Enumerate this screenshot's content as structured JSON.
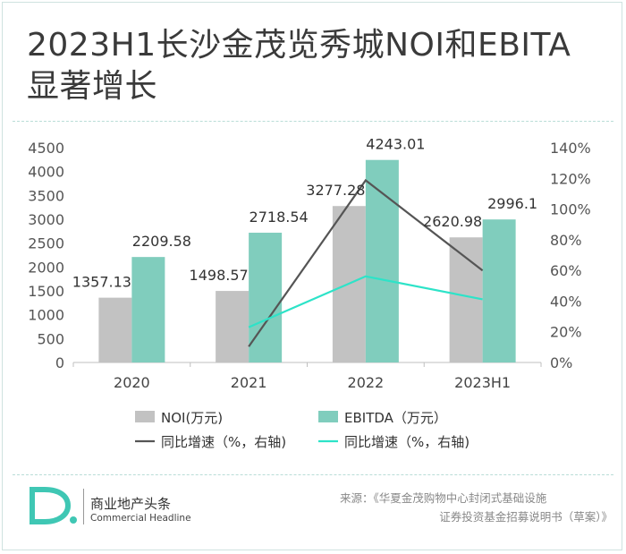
{
  "title": "2023H1长沙金茂览秀城NOI和EBITA显著增长",
  "brand": {
    "name": "商业地产头条",
    "sub": "Commercial Headline",
    "logo_text": "D."
  },
  "source": {
    "line1": "来源：《华夏金茂购物中心封闭式基础设施",
    "line2": "证券投资基金招募说明书（草案）》"
  },
  "colors": {
    "noi_bar": "#c2c2c2",
    "ebitda_bar": "#80cdbd",
    "noi_line": "#555555",
    "ebitda_line": "#2de3c8",
    "accent": "#3fc7b4"
  },
  "chart_data": {
    "type": "bar",
    "categories": [
      "2020",
      "2021",
      "2022",
      "2023H1"
    ],
    "series": [
      {
        "name": "NOI(万元)",
        "kind": "bar",
        "axis": "left",
        "values": [
          1357.13,
          1498.57,
          3277.28,
          2620.98
        ],
        "labels": [
          "1357.13",
          "1498.57",
          "3277.28",
          "2620.98"
        ]
      },
      {
        "name": "EBITDA（万元）",
        "kind": "bar",
        "axis": "left",
        "values": [
          2209.58,
          2718.54,
          4243.01,
          2996.1
        ],
        "labels": [
          "2209.58",
          "2718.54",
          "4243.01",
          "2996.1"
        ]
      },
      {
        "name": "同比增速（%，右轴)",
        "kind": "line",
        "axis": "right",
        "values": [
          null,
          10.4,
          118.7,
          59.9
        ]
      },
      {
        "name": "同比增速（%，右轴)",
        "kind": "line",
        "axis": "right",
        "values": [
          null,
          23.0,
          56.1,
          41.2
        ]
      }
    ],
    "y_left": {
      "min": 0,
      "max": 4500,
      "step": 500,
      "ticks": [
        "0",
        "500",
        "1000",
        "1500",
        "2000",
        "2500",
        "3000",
        "3500",
        "4000",
        "4500"
      ]
    },
    "y_right": {
      "min": 0,
      "max": 140,
      "step": 20,
      "ticks": [
        "0%",
        "20%",
        "40%",
        "60%",
        "80%",
        "100%",
        "120%",
        "140%"
      ]
    },
    "grid": false,
    "legend": "bottom"
  }
}
